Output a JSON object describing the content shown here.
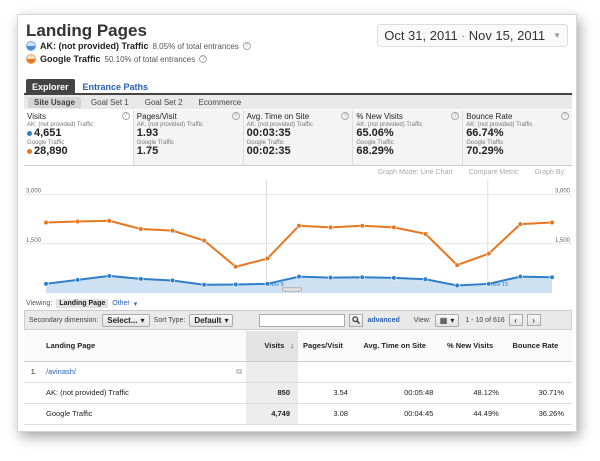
{
  "header": {
    "title": "Landing Pages",
    "segments": [
      {
        "name": "AK: (not provided) Traffic",
        "pct": "8.05% of total entrances"
      },
      {
        "name": "Google Traffic",
        "pct": "50.10% of total entrances"
      }
    ],
    "date_range": {
      "start": "Oct 31, 2011",
      "sep": "-",
      "end": "Nov 15, 2011"
    }
  },
  "tabs": {
    "explorer": "Explorer",
    "entrance_paths": "Entrance Paths"
  },
  "subtabs": [
    "Site Usage",
    "Goal Set 1",
    "Goal Set 2",
    "Ecommerce"
  ],
  "metrics": [
    {
      "title": "Visits",
      "seg1": "AK: (not provided) Traffic",
      "val1": "4,651",
      "seg2": "Google Traffic",
      "val2": "28,890"
    },
    {
      "title": "Pages/Visit",
      "seg1": "AK: (not provided) Traffic",
      "val1": "1.93",
      "seg2": "Google Traffic",
      "val2": "1.75"
    },
    {
      "title": "Avg. Time on Site",
      "seg1": "AK: (not provided) Traffic",
      "val1": "00:03:35",
      "seg2": "Google Traffic",
      "val2": "00:02:35"
    },
    {
      "title": "% New Visits",
      "seg1": "AK: (not provided) Traffic",
      "val1": "65.06%",
      "seg2": "Google Traffic",
      "val2": "68.29%"
    },
    {
      "title": "Bounce Rate",
      "seg1": "AK: (not provided) Traffic",
      "val1": "66.74%",
      "seg2": "Google Traffic",
      "val2": "70.29%"
    }
  ],
  "graph_options": {
    "mode": "Graph Mode: Line Chart",
    "compare": "Compare Metric",
    "graph_by": "Graph By:"
  },
  "colors": {
    "blue": "#2e7fc8",
    "orange": "#e8761f",
    "blue_fill": "#c9def2"
  },
  "chart_data": {
    "type": "line",
    "y_ticks": [
      "3,000",
      "1,500"
    ],
    "ylim": [
      0,
      3200
    ],
    "grid": true,
    "annotations": [
      "Nov 8",
      "Nov 15"
    ],
    "series": [
      {
        "name": "Google Traffic",
        "color": "#e8761f",
        "values": [
          2150,
          2180,
          2200,
          1950,
          1900,
          1600,
          800,
          1050,
          2050,
          2000,
          2050,
          2000,
          1800,
          850,
          1200,
          2100,
          2150
        ]
      },
      {
        "name": "AK: (not provided) Traffic",
        "color": "#2e7fc8",
        "values": [
          280,
          400,
          520,
          430,
          380,
          250,
          260,
          280,
          500,
          470,
          480,
          460,
          420,
          230,
          280,
          500,
          480
        ]
      }
    ]
  },
  "table": {
    "viewing_label": "Viewing:",
    "viewing_value": "Landing Page",
    "other_label": "Other",
    "secondary_dimension_label": "Secondary dimension:",
    "select_label": "Select...",
    "sort_type_label": "Sort Type:",
    "sort_value": "Default",
    "advanced_label": "advanced",
    "view_label": "View:",
    "pagination": "1 - 10 of 616",
    "columns": [
      "Landing Page",
      "Visits",
      "Pages/Visit",
      "Avg. Time on Site",
      "% New Visits",
      "Bounce Rate"
    ],
    "rows": [
      {
        "idx": "1.",
        "name": "/avinash/",
        "link": true,
        "visits": "",
        "ppv": "",
        "time": "",
        "new": "",
        "bounce": ""
      },
      {
        "idx": "",
        "name": "AK: (not provided) Traffic",
        "link": false,
        "visits": "850",
        "ppv": "3.54",
        "time": "00:05:48",
        "new": "48.12%",
        "bounce": "30.71%"
      },
      {
        "idx": "",
        "name": "Google Traffic",
        "link": false,
        "visits": "4,749",
        "ppv": "3.08",
        "time": "00:04:45",
        "new": "44.49%",
        "bounce": "36.26%"
      }
    ]
  }
}
